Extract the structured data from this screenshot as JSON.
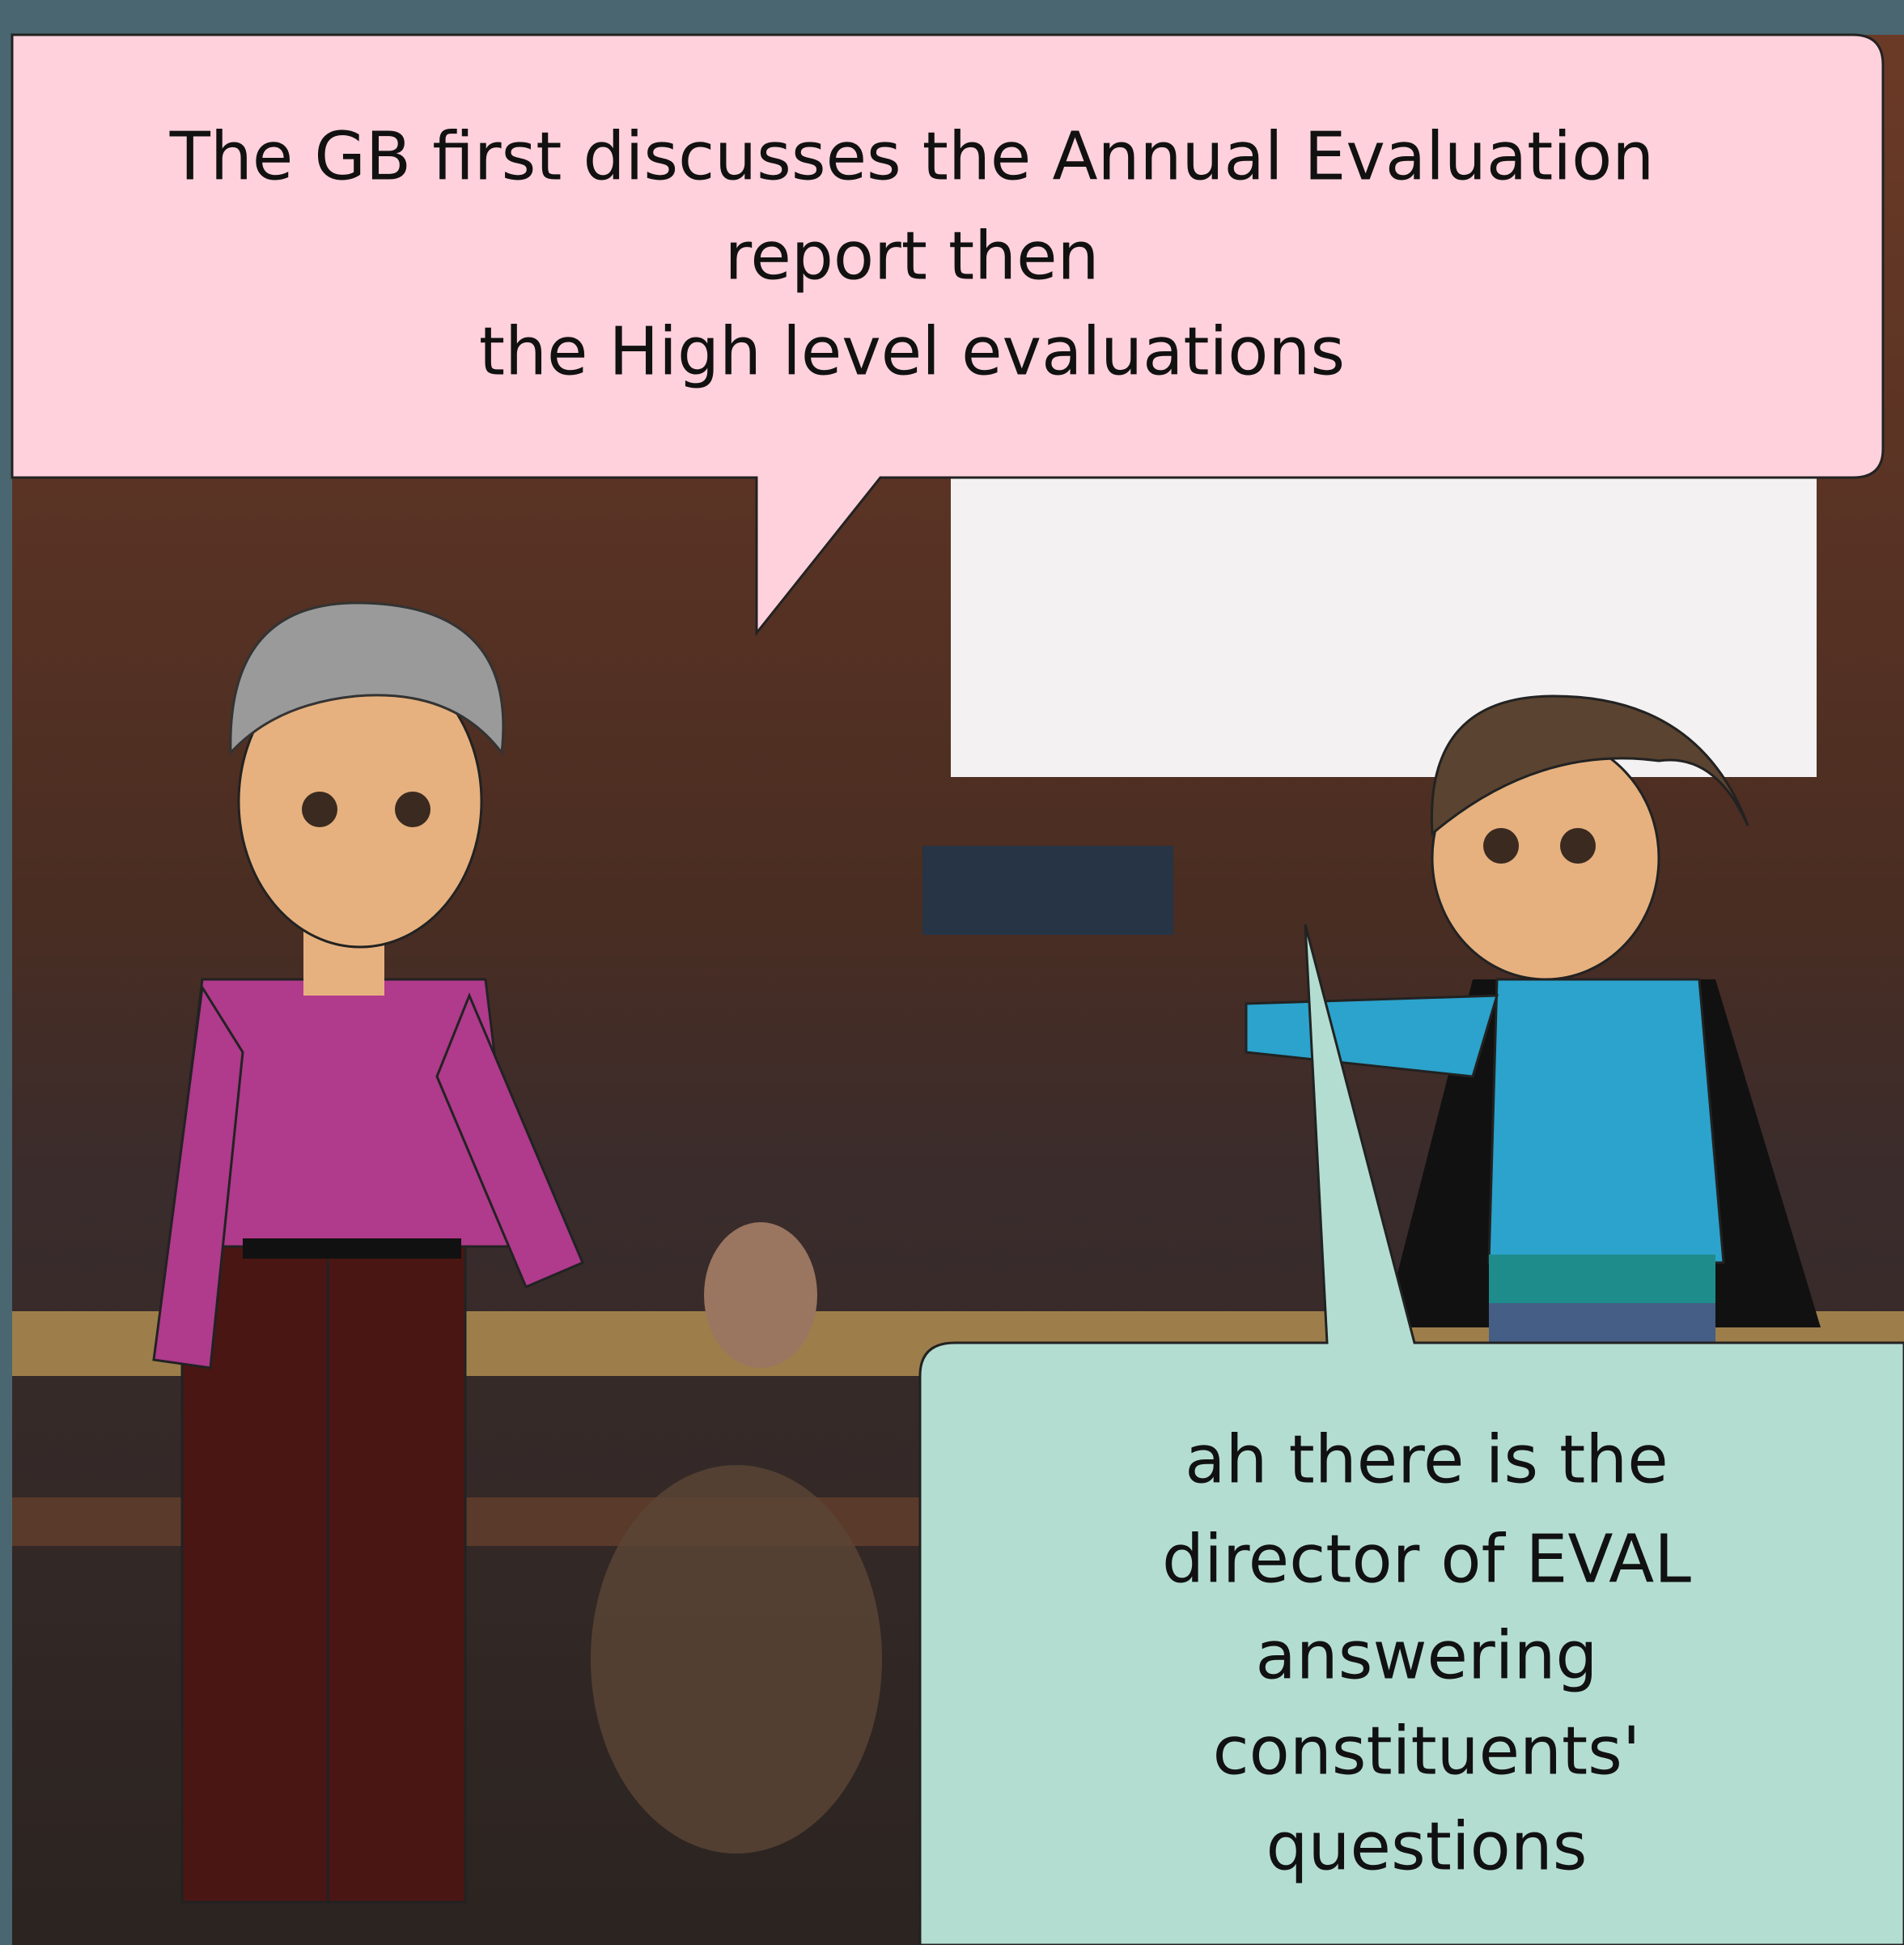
{
  "speech_bubbles": [
    {
      "lines": [
        "The GB first discusses the Annual Evaluation",
        "report then",
        "the High level evaluations"
      ]
    },
    {
      "lines": [
        "ah there is the",
        "director of EVAL",
        "answering",
        "constituents'",
        "questions"
      ]
    }
  ]
}
